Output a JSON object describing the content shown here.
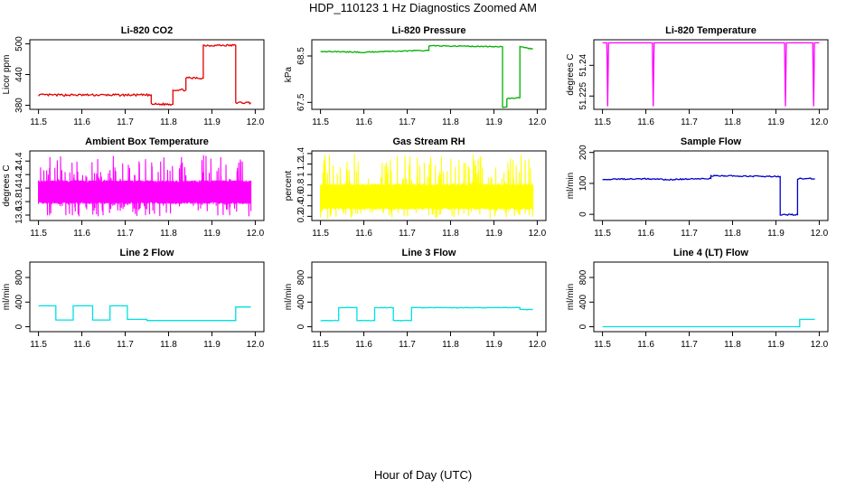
{
  "title": "HDP_110123  1 Hz Diagnostics Zoomed AM",
  "xlabel": "Hour of Day (UTC)",
  "chart_data": [
    {
      "type": "line",
      "title": "Li-820 CO2",
      "ylabel": "Licor ppm",
      "color": "#e00000",
      "xlim": [
        11.48,
        12.02
      ],
      "ylim": [
        372,
        508
      ],
      "xticks": [
        11.5,
        11.6,
        11.7,
        11.8,
        11.9,
        12.0
      ],
      "yticks": [
        380,
        440,
        500
      ],
      "noise": 2,
      "x": [
        11.5,
        11.76,
        11.76,
        11.81,
        11.81,
        11.84,
        11.84,
        11.88,
        11.88,
        11.955,
        11.955,
        11.99
      ],
      "y": [
        400,
        400,
        382,
        382,
        410,
        410,
        433,
        433,
        497,
        497,
        385,
        385
      ]
    },
    {
      "type": "line",
      "title": "Li-820 Pressure",
      "ylabel": "kPa",
      "color": "#00b000",
      "xlim": [
        11.48,
        12.02
      ],
      "ylim": [
        67.35,
        68.85
      ],
      "xticks": [
        11.5,
        11.6,
        11.7,
        11.8,
        11.9,
        12.0
      ],
      "yticks": [
        67.5,
        68.5
      ],
      "noise": 0.01,
      "x": [
        11.5,
        11.6,
        11.65,
        11.75,
        11.75,
        11.92,
        11.92,
        11.93,
        11.93,
        11.96,
        11.96,
        11.97,
        11.99
      ],
      "y": [
        68.6,
        68.58,
        68.6,
        68.62,
        68.72,
        68.7,
        67.4,
        67.4,
        67.58,
        67.6,
        68.7,
        68.68,
        68.65
      ]
    },
    {
      "type": "line",
      "title": "Li-820 Temperature",
      "ylabel": "degrees C",
      "color": "#ff00ff",
      "xlim": [
        11.48,
        12.02
      ],
      "ylim": [
        51.2185,
        51.2525
      ],
      "xticks": [
        11.5,
        11.6,
        11.7,
        11.8,
        11.9,
        12.0
      ],
      "yticks": [
        51.225,
        51.24
      ],
      "noise": 0,
      "x": [
        11.5,
        11.51,
        11.512,
        11.514,
        11.615,
        11.617,
        11.619,
        11.92,
        11.922,
        11.924,
        11.985,
        11.987,
        11.989,
        12.0
      ],
      "y": [
        51.251,
        51.251,
        51.22,
        51.251,
        51.251,
        51.22,
        51.251,
        51.251,
        51.22,
        51.251,
        51.251,
        51.22,
        51.251,
        51.251
      ]
    },
    {
      "type": "line",
      "title": "Ambient Box Temperature",
      "ylabel": "degrees C",
      "color": "#ff00ff",
      "xlim": [
        11.48,
        12.02
      ],
      "ylim": [
        13.52,
        14.55
      ],
      "xticks": [
        11.5,
        11.6,
        11.7,
        11.8,
        11.9,
        12.0
      ],
      "yticks": [
        13.6,
        13.8,
        14.0,
        14.2,
        14.4
      ],
      "noise": 0,
      "band": {
        "min": 13.58,
        "max": 14.5,
        "lo": 13.78,
        "hi": 14.1,
        "seed": 7
      },
      "x": [
        11.5,
        11.99
      ],
      "y": [
        13.95,
        13.95
      ]
    },
    {
      "type": "line",
      "title": "Gas Stream RH",
      "ylabel": "percent",
      "color": "#ffff00",
      "xlim": [
        11.48,
        12.02
      ],
      "ylim": [
        0.12,
        1.45
      ],
      "xticks": [
        11.5,
        11.6,
        11.7,
        11.8,
        11.9,
        12.0
      ],
      "yticks": [
        0.2,
        0.4,
        0.6,
        0.8,
        1.0,
        1.2,
        1.4
      ],
      "noise": 0,
      "band": {
        "min": 0.15,
        "max": 1.4,
        "lo": 0.35,
        "hi": 0.8,
        "seed": 11
      },
      "x": [
        11.5,
        11.99
      ],
      "y": [
        0.55,
        0.55
      ]
    },
    {
      "type": "line",
      "title": "Sample Flow",
      "ylabel": "ml/min",
      "color": "#0000cc",
      "xlim": [
        11.48,
        12.02
      ],
      "ylim": [
        -20,
        205
      ],
      "xticks": [
        11.5,
        11.6,
        11.7,
        11.8,
        11.9,
        12.0
      ],
      "yticks": [
        0,
        100,
        200
      ],
      "noise": 2,
      "x": [
        11.5,
        11.6,
        11.65,
        11.75,
        11.75,
        11.8,
        11.91,
        11.91,
        11.95,
        11.95,
        11.99
      ],
      "y": [
        113,
        115,
        112,
        116,
        125,
        124,
        122,
        -1,
        -1,
        115,
        115
      ]
    },
    {
      "type": "line",
      "title": "Line 2 Flow",
      "ylabel": "ml/min",
      "color": "#00e0e0",
      "xlim": [
        11.48,
        12.02
      ],
      "ylim": [
        -80,
        1050
      ],
      "xticks": [
        11.5,
        11.6,
        11.7,
        11.8,
        11.9,
        12.0
      ],
      "yticks": [
        0,
        400,
        800
      ],
      "noise": 0,
      "x": [
        11.5,
        11.54,
        11.54,
        11.58,
        11.58,
        11.625,
        11.625,
        11.665,
        11.665,
        11.705,
        11.705,
        11.75,
        11.75,
        11.955,
        11.955,
        11.99
      ],
      "y": [
        340,
        340,
        110,
        110,
        340,
        340,
        110,
        110,
        340,
        340,
        120,
        120,
        100,
        100,
        320,
        320
      ]
    },
    {
      "type": "line",
      "title": "Line 3 Flow",
      "ylabel": "ml/min",
      "color": "#00e0e0",
      "xlim": [
        11.48,
        12.02
      ],
      "ylim": [
        -80,
        1050
      ],
      "xticks": [
        11.5,
        11.6,
        11.7,
        11.8,
        11.9,
        12.0
      ],
      "yticks": [
        0,
        400,
        800
      ],
      "noise": 4,
      "x": [
        11.5,
        11.542,
        11.542,
        11.584,
        11.584,
        11.625,
        11.625,
        11.668,
        11.668,
        11.71,
        11.71,
        11.96,
        11.96,
        11.99
      ],
      "y": [
        100,
        100,
        310,
        310,
        100,
        100,
        310,
        310,
        100,
        100,
        310,
        310,
        280,
        280
      ]
    },
    {
      "type": "line",
      "title": "Line 4 (LT) Flow",
      "ylabel": "ml/min",
      "color": "#00e0e0",
      "xlim": [
        11.48,
        12.02
      ],
      "ylim": [
        -80,
        1050
      ],
      "xticks": [
        11.5,
        11.6,
        11.7,
        11.8,
        11.9,
        12.0
      ],
      "yticks": [
        0,
        400,
        800
      ],
      "noise": 0,
      "x": [
        11.5,
        11.955,
        11.955,
        11.99
      ],
      "y": [
        0,
        0,
        120,
        120
      ]
    }
  ]
}
